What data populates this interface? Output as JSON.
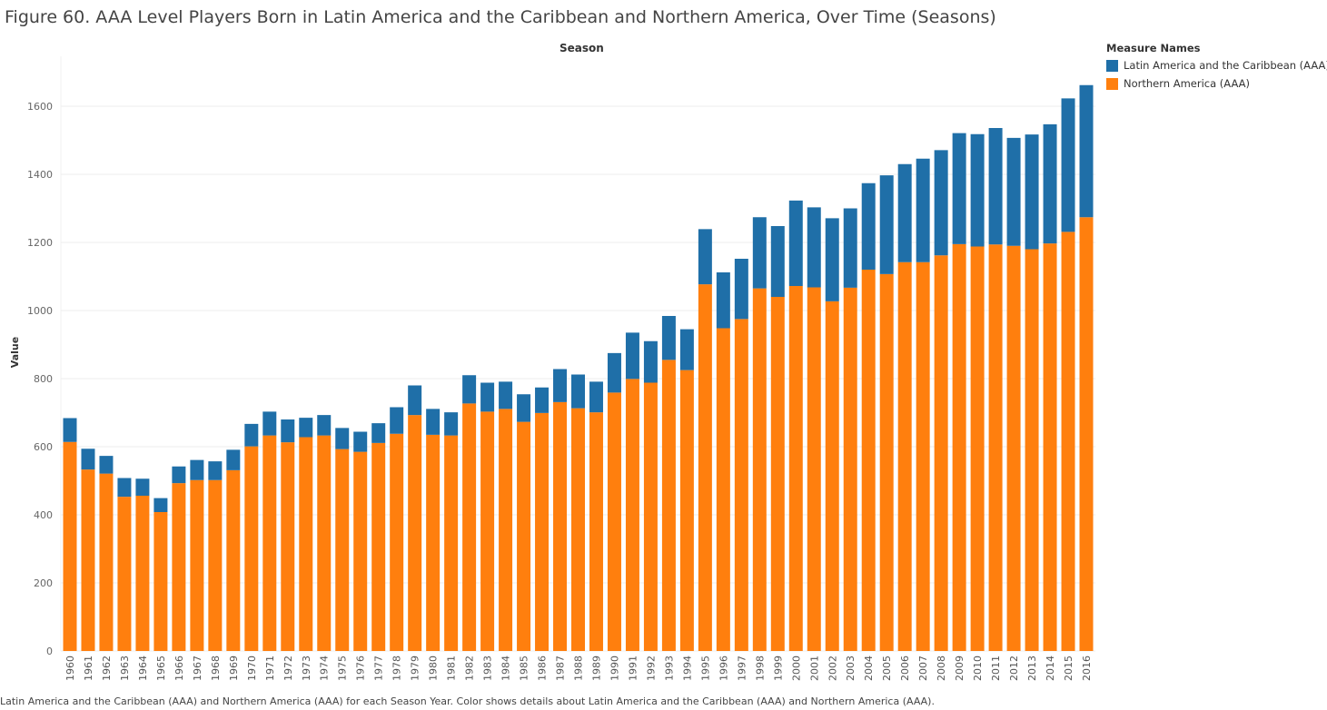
{
  "title": "Figure 60. AAA Level Players Born in Latin America and the Caribbean and Northern America, Over Time (Seasons)",
  "footnote": "Latin America and the Caribbean (AAA) and Northern America (AAA) for each Season Year.  Color shows details about Latin America and the Caribbean (AAA) and Northern America (AAA).",
  "legend": {
    "title": "Measure Names",
    "items": [
      {
        "label": "Latin America and the Caribbean (AAA)",
        "color": "#1f6fa8"
      },
      {
        "label": "Northern America (AAA)",
        "color": "#ff7f0e"
      }
    ]
  },
  "chart_data": {
    "type": "bar",
    "stacked": true,
    "title": "Season",
    "xlabel": "",
    "ylabel": "Value",
    "ylim": [
      0,
      1700
    ],
    "yticks": [
      0,
      200,
      400,
      600,
      800,
      1000,
      1200,
      1400,
      1600
    ],
    "grid": true,
    "legend_position": "top-right",
    "categories": [
      "1960",
      "1961",
      "1962",
      "1963",
      "1964",
      "1965",
      "1966",
      "1967",
      "1968",
      "1969",
      "1970",
      "1971",
      "1972",
      "1973",
      "1974",
      "1975",
      "1976",
      "1977",
      "1978",
      "1979",
      "1980",
      "1981",
      "1982",
      "1983",
      "1984",
      "1985",
      "1986",
      "1987",
      "1988",
      "1989",
      "1990",
      "1991",
      "1992",
      "1993",
      "1994",
      "1995",
      "1996",
      "1997",
      "1998",
      "1999",
      "2000",
      "2001",
      "2002",
      "2003",
      "2004",
      "2005",
      "2006",
      "2007",
      "2008",
      "2009",
      "2010",
      "2011",
      "2012",
      "2013",
      "2014",
      "2015",
      "2016"
    ],
    "series": [
      {
        "name": "Northern America (AAA)",
        "color": "#ff7f0e",
        "values": [
          614,
          533,
          521,
          453,
          456,
          408,
          493,
          502,
          502,
          531,
          601,
          633,
          613,
          628,
          633,
          593,
          585,
          611,
          638,
          693,
          635,
          633,
          727,
          703,
          711,
          673,
          699,
          731,
          713,
          701,
          759,
          799,
          788,
          855,
          825,
          1077,
          948,
          975,
          1065,
          1040,
          1072,
          1068,
          1027,
          1067,
          1120,
          1107,
          1142,
          1142,
          1162,
          1195,
          1188,
          1194,
          1190,
          1180,
          1197,
          1231,
          1274
        ]
      },
      {
        "name": "Latin America and the Caribbean (AAA)",
        "color": "#1f6fa8",
        "values": [
          70,
          61,
          52,
          55,
          50,
          41,
          49,
          59,
          55,
          60,
          66,
          70,
          67,
          57,
          60,
          62,
          59,
          58,
          78,
          87,
          76,
          68,
          83,
          85,
          80,
          81,
          75,
          97,
          99,
          90,
          116,
          136,
          122,
          129,
          120,
          162,
          164,
          177,
          209,
          208,
          251,
          235,
          244,
          233,
          254,
          290,
          288,
          304,
          309,
          326,
          330,
          342,
          317,
          337,
          350,
          392,
          388
        ]
      }
    ]
  }
}
